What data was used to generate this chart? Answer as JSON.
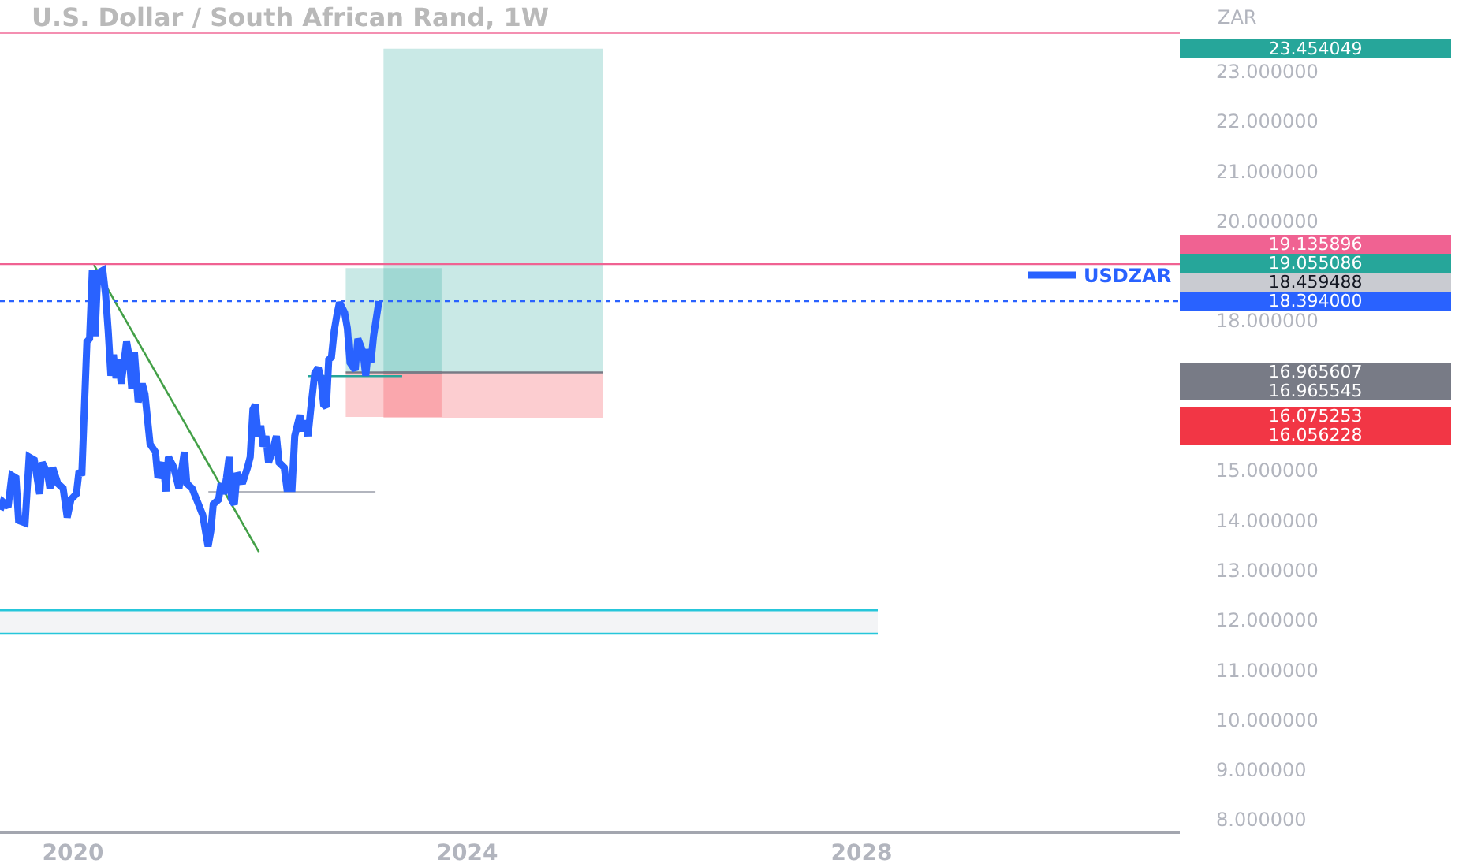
{
  "chart_data": {
    "type": "line",
    "title": "U.S. Dollar / South African Rand, 1W",
    "ylabel": "ZAR",
    "legend": "right",
    "xlim": [
      "2019-04-06",
      "2031-03-25"
    ],
    "xticks": [
      "2020",
      "2024",
      "2028"
    ],
    "ylim": [
      7.78,
      24.43
    ],
    "yticks": [
      {
        "value": 8,
        "label": "8.000000"
      },
      {
        "value": 9,
        "label": "9.000000"
      },
      {
        "value": 10,
        "label": "10.000000"
      },
      {
        "value": 11,
        "label": "11.000000"
      },
      {
        "value": 12,
        "label": "12.000000"
      },
      {
        "value": 13,
        "label": "13.000000"
      },
      {
        "value": 14,
        "label": "14.000000"
      },
      {
        "value": 15,
        "label": "15.000000"
      },
      {
        "value": 18,
        "label": "18.000000"
      },
      {
        "value": 20,
        "label": "20.000000"
      },
      {
        "value": 21,
        "label": "21.000000"
      },
      {
        "value": 22,
        "label": "22.000000"
      },
      {
        "value": 23,
        "label": "23.000000"
      }
    ],
    "series": [
      {
        "name": "USDZAR",
        "color": "#2962ff",
        "x": [
          "2019-04-07",
          "2019-04-17",
          "2019-05-06",
          "2019-05-20",
          "2019-06-04",
          "2019-06-14",
          "2019-07-08",
          "2019-07-23",
          "2019-08-11",
          "2019-08-31",
          "2019-09-09",
          "2019-09-29",
          "2019-10-08",
          "2019-10-18",
          "2019-11-06",
          "2019-11-26",
          "2019-12-11",
          "2019-12-25",
          "2020-01-14",
          "2020-01-24",
          "2020-02-03",
          "2020-02-22",
          "2020-03-03",
          "2020-03-13",
          "2020-03-23",
          "2020-04-02",
          "2020-04-21",
          "2020-05-01",
          "2020-05-11",
          "2020-05-21",
          "2020-05-30",
          "2020-06-09",
          "2020-06-19",
          "2020-06-28",
          "2020-07-18",
          "2020-07-28",
          "2020-08-06",
          "2020-08-16",
          "2020-08-30",
          "2020-09-14",
          "2020-09-24",
          "2020-10-13",
          "2020-11-02",
          "2020-11-11",
          "2020-12-01",
          "2020-12-11",
          "2020-12-20",
          "2021-01-09",
          "2021-01-28",
          "2021-02-17",
          "2021-02-26",
          "2021-03-18",
          "2021-04-07",
          "2021-04-26",
          "2021-05-16",
          "2021-05-26",
          "2021-06-04",
          "2021-06-24",
          "2021-07-03",
          "2021-07-13",
          "2021-07-23",
          "2021-08-02",
          "2021-08-11",
          "2021-08-21",
          "2021-08-31",
          "2021-09-20",
          "2021-10-09",
          "2021-10-19",
          "2021-10-29",
          "2021-11-07",
          "2021-11-17",
          "2021-11-27",
          "2021-12-06",
          "2021-12-16",
          "2021-12-26",
          "2022-01-14",
          "2022-01-24",
          "2022-02-03",
          "2022-02-22",
          "2022-03-04",
          "2022-03-23",
          "2022-04-02",
          "2022-04-21",
          "2022-05-01",
          "2022-05-11",
          "2022-05-21",
          "2022-05-31",
          "2022-06-15",
          "2022-06-28",
          "2022-07-08",
          "2022-07-18",
          "2022-07-28",
          "2022-08-06",
          "2022-08-16",
          "2022-08-26",
          "2022-09-05",
          "2022-09-15",
          "2022-10-04",
          "2022-10-14",
          "2022-10-24",
          "2022-11-12",
          "2022-11-22",
          "2022-12-11",
          "2022-12-21",
          "2022-12-31",
          "2023-01-09",
          "2023-01-19",
          "2023-02-08"
        ],
        "values": [
          14.21,
          14.37,
          14.27,
          14.9,
          14.85,
          14.0,
          13.95,
          15.27,
          15.21,
          14.53,
          15.16,
          14.95,
          14.64,
          15.06,
          14.74,
          14.64,
          14.06,
          14.42,
          14.53,
          15.0,
          14.9,
          17.58,
          17.64,
          19.01,
          17.69,
          18.95,
          19.01,
          18.53,
          17.79,
          16.9,
          17.32,
          16.85,
          17.22,
          16.74,
          17.58,
          17.27,
          16.64,
          17.37,
          16.37,
          16.74,
          16.53,
          15.53,
          15.37,
          14.85,
          15.16,
          14.58,
          15.27,
          15.06,
          14.64,
          15.37,
          14.74,
          14.64,
          14.37,
          14.11,
          13.48,
          13.79,
          14.32,
          14.42,
          14.74,
          14.53,
          14.85,
          15.27,
          14.42,
          14.32,
          14.95,
          14.74,
          15.06,
          15.27,
          16.22,
          16.32,
          15.69,
          15.9,
          15.48,
          15.69,
          15.16,
          15.48,
          15.69,
          15.16,
          15.06,
          14.64,
          14.64,
          15.69,
          16.11,
          15.79,
          16.0,
          15.69,
          16.22,
          16.95,
          17.06,
          16.85,
          16.32,
          16.27,
          17.22,
          17.27,
          17.79,
          18.11,
          18.37,
          18.16,
          17.85,
          17.16,
          17.01,
          17.64,
          17.37,
          16.9,
          17.43,
          17.16,
          17.69,
          18.394
        ]
      },
      {
        "color": "#43a047",
        "x": [
          "2020-03-19",
          "2021-11-20"
        ],
        "values": [
          19.12,
          13.37
        ]
      },
      {
        "color": "#d1d4dc",
        "x": [
          "2019-04-06",
          "2028-03-01"
        ],
        "values": [
          null,
          null
        ],
        "lower": [
          11.73,
          11.73
        ],
        "upper": [
          12.2,
          12.2
        ]
      },
      {
        "color": "#26c6da",
        "x": [
          "2019-04-06",
          "2028-03-01"
        ],
        "values": [
          12.2,
          12.2
        ]
      },
      {
        "color": "#26c6da",
        "x": [
          "2019-04-06",
          "2028-03-01"
        ],
        "values": [
          11.73,
          11.73
        ]
      },
      {
        "color": "#b2b5be",
        "x": [
          "2021-05-17",
          "2023-01-26"
        ],
        "values": [
          14.57,
          14.57
        ]
      },
      {
        "color": "#26a69a",
        "x": [
          "2022-05-21",
          "2023-05-05"
        ],
        "values": [
          16.89,
          16.89
        ]
      },
      {
        "color": "#26a69a",
        "x": [
          "2022-10-08",
          "2023-09-28"
        ],
        "values": [
          null,
          null
        ],
        "lower": [
          16.965607,
          16.965607
        ],
        "upper": [
          19.055086,
          19.055086
        ]
      },
      {
        "color": "#f23645",
        "x": [
          "2022-10-08",
          "2023-09-28"
        ],
        "values": [
          null,
          null
        ],
        "lower": [
          16.075253,
          16.075253
        ],
        "upper": [
          16.965607,
          16.965607
        ]
      },
      {
        "color": "#787b86",
        "x": [
          "2022-10-08",
          "2023-09-28"
        ],
        "values": [
          16.965607,
          16.965607
        ]
      },
      {
        "color": "#26a69a",
        "x": [
          "2023-02-25",
          "2025-05-18"
        ],
        "values": [
          null,
          null
        ],
        "lower": [
          16.965545,
          16.965545
        ],
        "upper": [
          23.454049,
          23.454049
        ]
      },
      {
        "color": "#f23645",
        "x": [
          "2023-02-25",
          "2025-05-18"
        ],
        "values": [
          null,
          null
        ],
        "lower": [
          16.056228,
          16.056228
        ],
        "upper": [
          16.965545,
          16.965545
        ]
      },
      {
        "color": "#787b86",
        "x": [
          "2023-02-25",
          "2025-05-18"
        ],
        "values": [
          16.965545,
          16.965545
        ]
      }
    ],
    "ref_lines": [
      {
        "axis": "y",
        "value": 23.77,
        "color": "#f48fb1"
      },
      {
        "axis": "y",
        "value": 19.135896,
        "color": "#f06292"
      },
      {
        "axis": "y",
        "value": 18.394,
        "color": "#2962ff",
        "line_style": "dotted"
      }
    ],
    "annotations": [
      "23.454049",
      "19.135896",
      "19.055086",
      "18.459488",
      "18.394000",
      "16.965607",
      "16.965545",
      "16.075253",
      "16.056228"
    ]
  }
}
